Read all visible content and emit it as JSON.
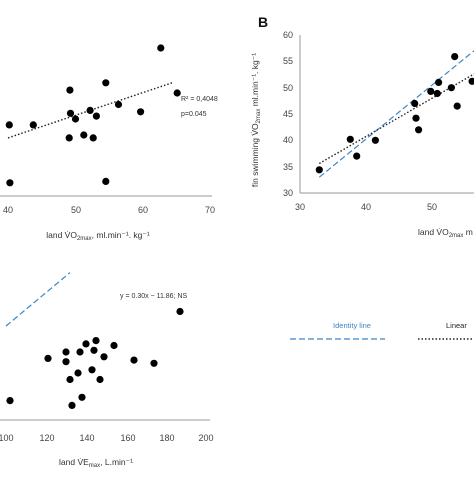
{
  "panel_b": {
    "letter": "B"
  },
  "legend": {
    "identity": {
      "label": "Identity line",
      "color": "#3a86c8"
    },
    "linear": {
      "label": "Linear",
      "color": "#222222"
    }
  },
  "chart_data": [
    {
      "id": "top-left",
      "type": "scatter",
      "xlabel_parts": {
        "main": "land V̇O",
        "sub": "2max",
        "rest": ", ml.min⁻¹. kg⁻¹"
      },
      "xticks": [
        40,
        50,
        60,
        70
      ],
      "xlim": [
        38,
        70
      ],
      "ylim": [
        0,
        1
      ],
      "points": [
        {
          "x": 38.2,
          "y": 0.47
        },
        {
          "x": 38.3,
          "y": 0.07
        },
        {
          "x": 42.0,
          "y": 0.47
        },
        {
          "x": 47.8,
          "y": 0.71
        },
        {
          "x": 47.9,
          "y": 0.55
        },
        {
          "x": 47.7,
          "y": 0.38
        },
        {
          "x": 48.7,
          "y": 0.51
        },
        {
          "x": 50.0,
          "y": 0.4
        },
        {
          "x": 51.0,
          "y": 0.57
        },
        {
          "x": 51.5,
          "y": 0.38
        },
        {
          "x": 52.0,
          "y": 0.53
        },
        {
          "x": 53.5,
          "y": 0.76
        },
        {
          "x": 53.5,
          "y": 0.08
        },
        {
          "x": 55.5,
          "y": 0.61
        },
        {
          "x": 59.0,
          "y": 0.56
        },
        {
          "x": 62.2,
          "y": 1.0
        },
        {
          "x": 64.8,
          "y": 0.69
        }
      ],
      "trend": {
        "x": [
          38,
          64
        ],
        "y": [
          0.38,
          0.76
        ]
      },
      "annotations": [
        "R² = 0,4048",
        "p=0.045"
      ]
    },
    {
      "id": "top-right",
      "type": "scatter",
      "ylabel_parts": {
        "main": "fin swimming V̇O",
        "sub": "2max",
        "rest": " ml.min⁻¹. kg⁻¹"
      },
      "xlabel_parts": {
        "main": "land V̇O",
        "sub": "2max",
        "rest": " m"
      },
      "xticks": [
        30,
        40,
        50
      ],
      "yticks": [
        30,
        35,
        40,
        45,
        50,
        55,
        60
      ],
      "xlim": [
        30,
        57
      ],
      "ylim": [
        30,
        60
      ],
      "points": [
        {
          "x": 33.0,
          "y": 34.4
        },
        {
          "x": 37.8,
          "y": 40.2
        },
        {
          "x": 38.8,
          "y": 37.0
        },
        {
          "x": 41.7,
          "y": 40.0
        },
        {
          "x": 47.8,
          "y": 47.0
        },
        {
          "x": 48.0,
          "y": 44.2
        },
        {
          "x": 48.4,
          "y": 42.0
        },
        {
          "x": 50.3,
          "y": 49.3
        },
        {
          "x": 51.3,
          "y": 48.9
        },
        {
          "x": 51.5,
          "y": 51.0
        },
        {
          "x": 53.5,
          "y": 50.0
        },
        {
          "x": 54.0,
          "y": 55.9
        },
        {
          "x": 54.4,
          "y": 46.5
        },
        {
          "x": 56.7,
          "y": 51.2
        }
      ],
      "identity": {
        "x": [
          33,
          57
        ],
        "y": [
          33,
          57
        ]
      },
      "trend": {
        "x": [
          33,
          57
        ],
        "y": [
          35.6,
          52.6
        ]
      }
    },
    {
      "id": "bottom-left",
      "type": "scatter",
      "xlabel_parts": {
        "main": "land V̇E",
        "sub": "max",
        "rest": ", L.min⁻¹"
      },
      "xticks": [
        100,
        120,
        140,
        160,
        180,
        200
      ],
      "xlim": [
        100,
        200
      ],
      "ylim": [
        0,
        1
      ],
      "points": [
        {
          "x": 102,
          "y": 0.12
        },
        {
          "x": 121,
          "y": 0.38
        },
        {
          "x": 130,
          "y": 0.36
        },
        {
          "x": 130,
          "y": 0.42
        },
        {
          "x": 132,
          "y": 0.25
        },
        {
          "x": 133,
          "y": 0.09
        },
        {
          "x": 136,
          "y": 0.29
        },
        {
          "x": 137,
          "y": 0.42
        },
        {
          "x": 138,
          "y": 0.14
        },
        {
          "x": 140,
          "y": 0.47
        },
        {
          "x": 143,
          "y": 0.31
        },
        {
          "x": 144,
          "y": 0.43
        },
        {
          "x": 145,
          "y": 0.49
        },
        {
          "x": 147,
          "y": 0.25
        },
        {
          "x": 149,
          "y": 0.39
        },
        {
          "x": 154,
          "y": 0.46
        },
        {
          "x": 164,
          "y": 0.37
        },
        {
          "x": 174,
          "y": 0.35
        },
        {
          "x": 187,
          "y": 0.67
        }
      ],
      "identity": {
        "x": [
          100,
          132
        ],
        "y": [
          0.58,
          0.91
        ]
      },
      "annotation": "y = 0.30x − 11.86; NS"
    }
  ]
}
